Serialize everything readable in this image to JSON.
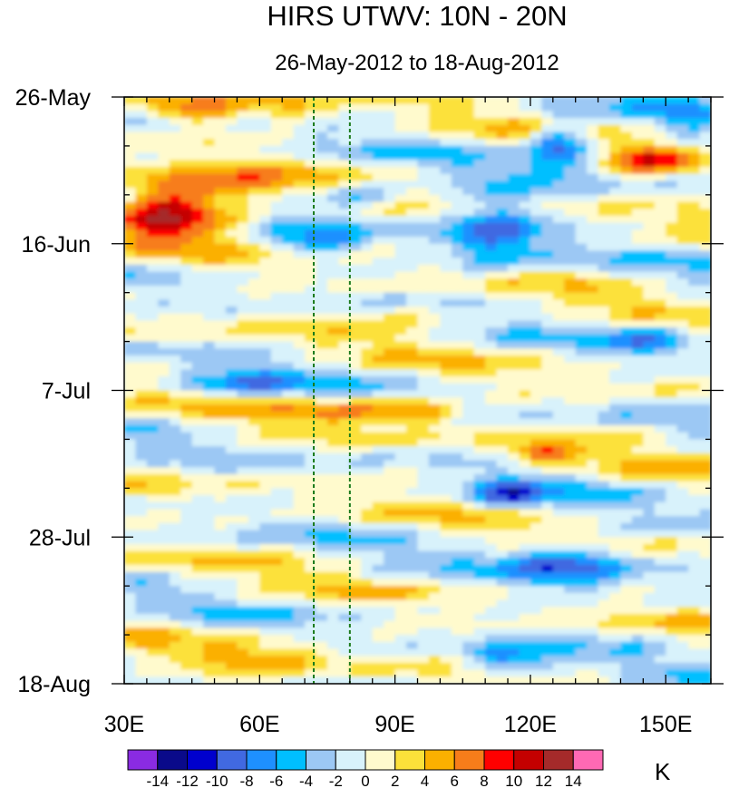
{
  "chart_data": {
    "type": "heatmap",
    "title": "HIRS UTWV: 10N - 20N",
    "subtitle": "26-May-2012 to 18-Aug-2012",
    "x_axis": {
      "range": [
        30,
        160
      ],
      "tick_labels": [
        "30E",
        "60E",
        "90E",
        "120E",
        "150E"
      ],
      "tick_values": [
        30,
        60,
        90,
        120,
        150
      ],
      "minor_step": 5
    },
    "y_axis": {
      "range_days": [
        0,
        84
      ],
      "tick_labels": [
        "26-May",
        "16-Jun",
        "7-Jul",
        "28-Jul",
        "18-Aug"
      ],
      "tick_days": [
        0,
        21,
        42,
        63,
        84
      ],
      "minor_step_days": 7,
      "direction": "top-to-bottom"
    },
    "reference_lines": [
      {
        "longitude": 72,
        "style": "dashed",
        "color": "#1a7a1a"
      },
      {
        "longitude": 80,
        "style": "dashed",
        "color": "#1a7a1a"
      }
    ],
    "colorbar": {
      "units": "K",
      "tick_labels": [
        "-14",
        "-12",
        "-10",
        "-8",
        "-6",
        "-4",
        "-2",
        "0",
        "2",
        "4",
        "6",
        "8",
        "10",
        "12",
        "14"
      ],
      "colors": [
        "#8a2be2",
        "#0a0a8a",
        "#0000cd",
        "#4169e1",
        "#1e90ff",
        "#00bfff",
        "#9cc8f4",
        "#d8f2fb",
        "#fffacd",
        "#fce13a",
        "#fbb000",
        "#f77d1a",
        "#ff0000",
        "#c40000",
        "#a52a2a",
        "#ff69b4"
      ]
    },
    "features": [
      {
        "lon": 45,
        "day": 17,
        "value": 8,
        "spread_lon": 9,
        "spread_day": 2.5
      },
      {
        "lon": 50,
        "day": 13,
        "value": 6,
        "spread_lon": 12,
        "spread_day": 2
      },
      {
        "lon": 37,
        "day": 16,
        "value": 6,
        "spread_lon": 6,
        "spread_day": 3
      },
      {
        "lon": 45,
        "day": 2,
        "value": 6,
        "spread_lon": 6,
        "spread_day": 1.5
      },
      {
        "lon": 65,
        "day": 2,
        "value": 4,
        "spread_lon": 8,
        "spread_day": 1.5
      },
      {
        "lon": 72,
        "day": 21,
        "value": -6,
        "spread_lon": 7,
        "spread_day": 1.3
      },
      {
        "lon": 82,
        "day": 14,
        "value": -6,
        "spread_lon": 8,
        "spread_day": 1.5
      },
      {
        "lon": 127,
        "day": 7,
        "value": -10,
        "spread_lon": 5,
        "spread_day": 2.5
      },
      {
        "lon": 147,
        "day": 9,
        "value": 8,
        "spread_lon": 7,
        "spread_day": 1.5
      },
      {
        "lon": 112,
        "day": 19,
        "value": -8,
        "spread_lon": 8,
        "spread_day": 4
      },
      {
        "lon": 145,
        "day": 35,
        "value": -6,
        "spread_lon": 6,
        "spread_day": 1.5
      },
      {
        "lon": 95,
        "day": 31,
        "value": 4,
        "spread_lon": 12,
        "spread_day": 1.2
      },
      {
        "lon": 80,
        "day": 45,
        "value": 6,
        "spread_lon": 12,
        "spread_day": 1.2
      },
      {
        "lon": 95,
        "day": 45,
        "value": 6,
        "spread_lon": 6,
        "spread_day": 1.2
      },
      {
        "lon": 123,
        "day": 51,
        "value": 8,
        "spread_lon": 5,
        "spread_day": 1
      },
      {
        "lon": 115,
        "day": 57,
        "value": -8,
        "spread_lon": 6,
        "spread_day": 1.5
      },
      {
        "lon": 128,
        "day": 67,
        "value": -8,
        "spread_lon": 10,
        "spread_day": 2.5
      },
      {
        "lon": 115,
        "day": 81,
        "value": -8,
        "spread_lon": 7,
        "spread_day": 1.5
      },
      {
        "lon": 55,
        "day": 41,
        "value": -6,
        "spread_lon": 10,
        "spread_day": 1.3
      },
      {
        "lon": 60,
        "day": 80,
        "value": 4,
        "spread_lon": 12,
        "spread_day": 1.5
      },
      {
        "lon": 154,
        "day": 3,
        "value": -4,
        "spread_lon": 5,
        "spread_day": 2
      }
    ]
  }
}
